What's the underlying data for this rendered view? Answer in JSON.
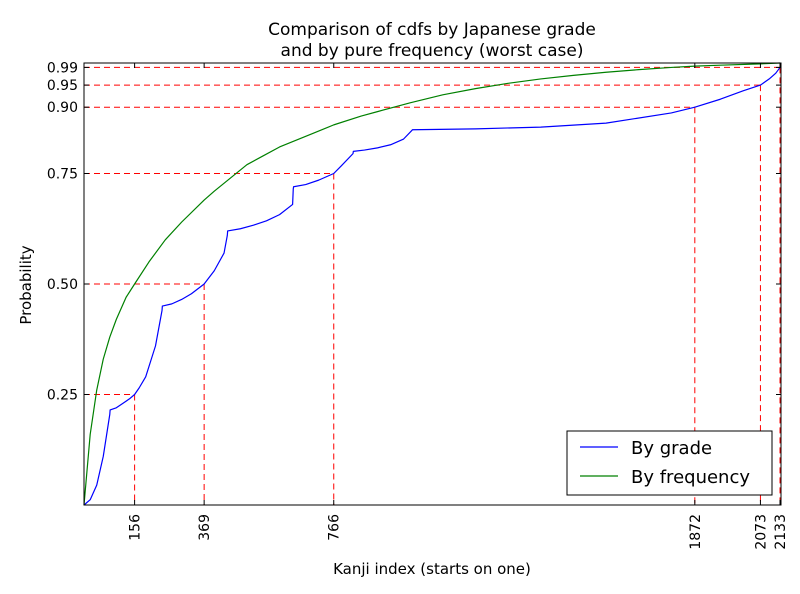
{
  "chart_data": {
    "type": "line",
    "title_lines": [
      "Comparison of cdfs by Japanese grade",
      "and by pure frequency (worst case)"
    ],
    "xlabel": "Kanji index (starts on one)",
    "ylabel": "Probability",
    "xlim": [
      1,
      2136
    ],
    "ylim": [
      0,
      1
    ],
    "x_ticks": [
      156,
      369,
      766,
      1872,
      2073,
      2133
    ],
    "x_tick_labels": [
      "156",
      "369",
      "766",
      "1872",
      "2073",
      "2133"
    ],
    "y_ticks": [
      0.25,
      0.5,
      0.75,
      0.9,
      0.95,
      0.99
    ],
    "y_tick_labels": [
      "0.25",
      "0.50",
      "0.75",
      "0.90",
      "0.95",
      "0.99"
    ],
    "reference_lines": [
      {
        "x": 156,
        "y": 0.25
      },
      {
        "x": 369,
        "y": 0.5
      },
      {
        "x": 766,
        "y": 0.75
      },
      {
        "x": 1872,
        "y": 0.9
      },
      {
        "x": 2073,
        "y": 0.95
      },
      {
        "x": 2133,
        "y": 0.99
      }
    ],
    "legend_position": "lower-right",
    "series": [
      {
        "name": "By grade",
        "color": "#0000ff",
        "x": [
          1,
          20,
          40,
          60,
          80,
          81,
          100,
          120,
          140,
          156,
          170,
          190,
          220,
          240,
          241,
          270,
          300,
          330,
          369,
          400,
          430,
          440,
          441,
          480,
          520,
          560,
          600,
          640,
          642,
          643,
          680,
          720,
          766,
          790,
          825,
          826,
          860,
          900,
          940,
          980,
          1006,
          1007,
          1200,
          1400,
          1600,
          1800,
          1872,
          1950,
          2020,
          2073,
          2100,
          2120,
          2133,
          2136
        ],
        "y": [
          0.0,
          0.012,
          0.045,
          0.11,
          0.205,
          0.215,
          0.22,
          0.23,
          0.24,
          0.25,
          0.265,
          0.29,
          0.36,
          0.44,
          0.45,
          0.455,
          0.465,
          0.478,
          0.5,
          0.53,
          0.57,
          0.61,
          0.62,
          0.625,
          0.633,
          0.643,
          0.657,
          0.68,
          0.715,
          0.72,
          0.725,
          0.735,
          0.75,
          0.768,
          0.795,
          0.8,
          0.803,
          0.808,
          0.815,
          0.828,
          0.848,
          0.849,
          0.851,
          0.855,
          0.864,
          0.887,
          0.9,
          0.918,
          0.937,
          0.95,
          0.964,
          0.977,
          0.99,
          1.0
        ]
      },
      {
        "name": "By frequency",
        "color": "#008000",
        "x": [
          1,
          20,
          40,
          60,
          80,
          100,
          130,
          156,
          200,
          250,
          300,
          369,
          400,
          450,
          500,
          550,
          600,
          700,
          766,
          850,
          900,
          1000,
          1100,
          1200,
          1300,
          1400,
          1500,
          1600,
          1700,
          1800,
          1872,
          1950,
          2073,
          2133
        ],
        "y": [
          0.0,
          0.16,
          0.26,
          0.33,
          0.38,
          0.42,
          0.47,
          0.5,
          0.55,
          0.6,
          0.64,
          0.69,
          0.71,
          0.74,
          0.77,
          0.79,
          0.81,
          0.84,
          0.86,
          0.88,
          0.89,
          0.91,
          0.928,
          0.942,
          0.954,
          0.964,
          0.972,
          0.979,
          0.985,
          0.99,
          0.993,
          0.995,
          0.998,
          1.0
        ]
      }
    ]
  }
}
